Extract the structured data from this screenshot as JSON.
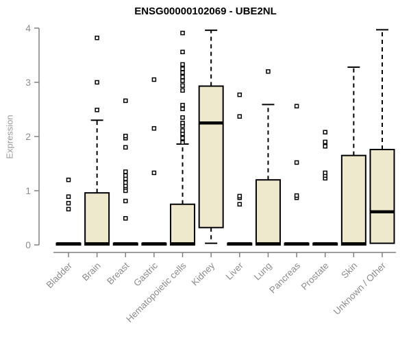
{
  "chart": {
    "title": "ENSG00000102069 - UBE2NL",
    "ylabel": "Expression"
  },
  "chart_data": {
    "type": "boxplot",
    "title": "ENSG00000102069 - UBE2NL",
    "xlabel": "",
    "ylabel": "Expression",
    "ylim": [
      0,
      4
    ],
    "yticks": [
      0,
      1,
      2,
      3,
      4
    ],
    "grid": false,
    "legend": "none",
    "box_fill": "#EEE8CD",
    "box_stroke": "#000000",
    "axis_color": "#808080",
    "tick_label_color": "#8C8C8C",
    "categories": [
      "Bladder",
      "Brain",
      "Breast",
      "Gastric",
      "Hematopoietic cells",
      "Kidney",
      "Liver",
      "Lung",
      "Pancreas",
      "Prostate",
      "Skin",
      "Unknown / Other"
    ],
    "boxes": [
      {
        "category": "Bladder",
        "low": 0,
        "q1": 0,
        "median": 0.02,
        "q3": 0.03,
        "high": 0.03,
        "outliers": [
          0.66,
          0.77,
          0.89,
          1.2
        ]
      },
      {
        "category": "Brain",
        "low": 0,
        "q1": 0,
        "median": 0.02,
        "q3": 0.96,
        "high": 2.3,
        "outliers": [
          2.49,
          3.0,
          3.82
        ]
      },
      {
        "category": "Breast",
        "low": 0,
        "q1": 0,
        "median": 0.02,
        "q3": 0.03,
        "high": 0.03,
        "outliers": [
          0.49,
          0.81,
          1.0,
          1.06,
          1.09,
          1.15,
          1.22,
          1.28,
          1.35,
          1.8,
          1.97,
          2.01,
          2.66
        ]
      },
      {
        "category": "Gastric",
        "low": 0,
        "q1": 0,
        "median": 0.02,
        "q3": 0.03,
        "high": 0.03,
        "outliers": [
          1.33,
          2.15,
          3.05
        ]
      },
      {
        "category": "Hematopoietic cells",
        "low": 0,
        "q1": 0,
        "median": 0.02,
        "q3": 0.75,
        "high": 1.86,
        "outliers": [
          1.89,
          1.97,
          2.05,
          2.11,
          2.2,
          2.25,
          2.35,
          2.51,
          2.58,
          2.85,
          2.94,
          3.03,
          3.1,
          3.18,
          3.25,
          3.33,
          3.56,
          3.91
        ]
      },
      {
        "category": "Kidney",
        "low": 0.03,
        "q1": 0.32,
        "median": 2.25,
        "q3": 2.93,
        "high": 3.96,
        "outliers": []
      },
      {
        "category": "Liver",
        "low": 0,
        "q1": 0,
        "median": 0.02,
        "q3": 0.03,
        "high": 0.03,
        "outliers": [
          0.75,
          0.87,
          0.9,
          2.37,
          2.77
        ]
      },
      {
        "category": "Lung",
        "low": 0,
        "q1": 0,
        "median": 0.02,
        "q3": 1.2,
        "high": 2.59,
        "outliers": [
          3.2
        ]
      },
      {
        "category": "Pancreas",
        "low": 0,
        "q1": 0,
        "median": 0.02,
        "q3": 0.03,
        "high": 0.03,
        "outliers": [
          0.87,
          0.91,
          1.52,
          2.56
        ]
      },
      {
        "category": "Prostate",
        "low": 0,
        "q1": 0,
        "median": 0.02,
        "q3": 0.03,
        "high": 0.03,
        "outliers": [
          1.23,
          1.28,
          1.33,
          1.82,
          1.9,
          2.08
        ]
      },
      {
        "category": "Skin",
        "low": 0,
        "q1": 0,
        "median": 0.02,
        "q3": 1.65,
        "high": 3.28,
        "outliers": []
      },
      {
        "category": "Unknown / Other",
        "low": 0.03,
        "q1": 0.03,
        "median": 0.61,
        "q3": 1.76,
        "high": 3.97,
        "outliers": []
      }
    ]
  }
}
